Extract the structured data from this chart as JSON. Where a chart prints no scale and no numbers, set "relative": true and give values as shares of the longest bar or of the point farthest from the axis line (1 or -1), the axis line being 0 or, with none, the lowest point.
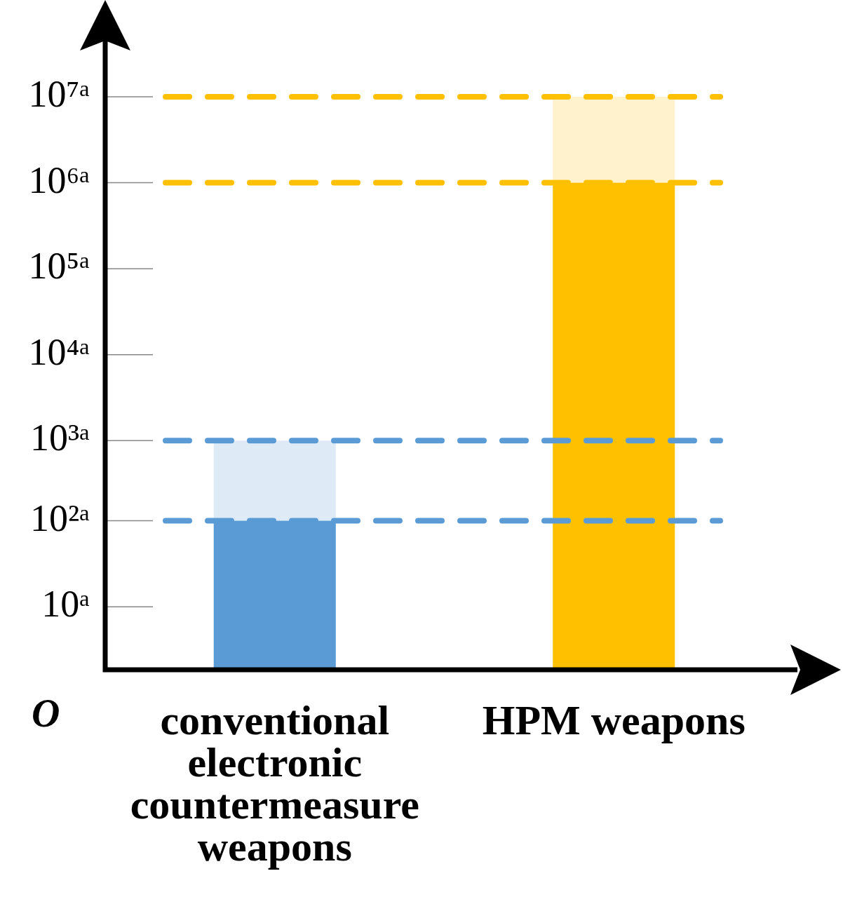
{
  "chart_data": {
    "type": "bar",
    "stacked": true,
    "relative": true,
    "categories": [
      "conventional electronic countermeasure weapons",
      "HPM weapons"
    ],
    "series": [
      {
        "colors": [
          "#5b9bd5",
          "#ffc000"
        ],
        "values": [
          0.26,
          0.85
        ]
      },
      {
        "colors": [
          "#deeaf6",
          "#fff2cc"
        ],
        "values": [
          0.14,
          0.15
        ]
      }
    ],
    "ref_lines": [
      {
        "axis": "y",
        "value": 0.11,
        "label": "10ᵃ"
      },
      {
        "axis": "y",
        "value": 0.26,
        "label": "10²ᵃ",
        "color": "#5b9bd5",
        "line_style": "dashed"
      },
      {
        "axis": "y",
        "value": 0.4,
        "label": "10³ᵃ",
        "color": "#5b9bd5",
        "line_style": "dashed"
      },
      {
        "axis": "y",
        "value": 0.55,
        "label": "10⁴ᵃ"
      },
      {
        "axis": "y",
        "value": 0.7,
        "label": "10⁵ᵃ"
      },
      {
        "axis": "y",
        "value": 0.85,
        "label": "10⁶ᵃ",
        "color": "#ffc000",
        "line_style": "dashed"
      },
      {
        "axis": "y",
        "value": 1,
        "label": "10⁷ᵃ",
        "color": "#ffc000",
        "line_style": "dashed"
      }
    ],
    "annotations": [
      "O"
    ],
    "legend": false
  }
}
